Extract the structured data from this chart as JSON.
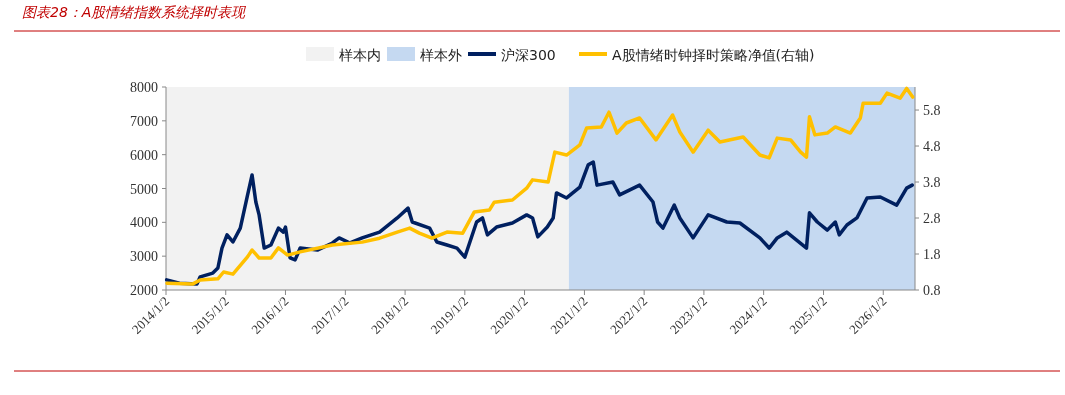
{
  "chart_data": {
    "type": "line",
    "title": "图表28：A股情绪指数系统择时表现",
    "legend": "top",
    "grid": false,
    "marker": "none",
    "line_style": "solid",
    "xlim": [
      "2014-01-02",
      "2026-07-15"
    ],
    "xticks": [
      {
        "value": "2014-01-02",
        "label": "2014/1/2"
      },
      {
        "value": "2015-01-02",
        "label": "2015/1/2"
      },
      {
        "value": "2016-01-02",
        "label": "2016/1/2"
      },
      {
        "value": "2017-01-02",
        "label": "2017/1/2"
      },
      {
        "value": "2018-01-02",
        "label": "2018/1/2"
      },
      {
        "value": "2019-01-02",
        "label": "2019/1/2"
      },
      {
        "value": "2020-01-02",
        "label": "2020/1/2"
      },
      {
        "value": "2021-01-02",
        "label": "2021/1/2"
      },
      {
        "value": "2022-01-02",
        "label": "2022/1/2"
      },
      {
        "value": "2023-01-02",
        "label": "2023/1/2"
      },
      {
        "value": "2024-01-02",
        "label": "2024/1/2"
      },
      {
        "value": "2025-01-02",
        "label": "2025/1/2"
      },
      {
        "value": "2026-01-02",
        "label": "2026/1/2"
      }
    ],
    "ylim": [
      2000,
      8000
    ],
    "yticks": [
      2000,
      3000,
      4000,
      5000,
      6000,
      7000,
      8000
    ],
    "y2lim": [
      0.8,
      6.44
    ],
    "y2ticks": [
      0.8,
      1.8,
      2.8,
      3.8,
      4.8,
      5.8
    ],
    "bands": [
      {
        "axis": "x",
        "from": "2014-01-02",
        "to": "2020-09-29",
        "label": "样本内",
        "color": "#f2f2f2"
      },
      {
        "axis": "x",
        "from": "2020-09-29",
        "to": "2026-07-15",
        "label": "样本外",
        "color": "#c5d9f1"
      }
    ],
    "series": [
      {
        "name": "沪深300",
        "color": "#002060",
        "x": [
          "2014-01-06",
          "2014-03-25",
          "2014-07-10",
          "2014-07-30",
          "2014-10-15",
          "2014-11-15",
          "2014-12-10",
          "2015-01-10",
          "2015-02-15",
          "2015-04-01",
          "2015-05-15",
          "2015-06-12",
          "2015-07-05",
          "2015-07-25",
          "2015-08-25",
          "2015-10-05",
          "2015-11-20",
          "2015-12-20",
          "2016-01-02",
          "2016-01-30",
          "2016-03-01",
          "2016-04-01",
          "2016-07-15",
          "2016-10-15",
          "2016-11-25",
          "2017-01-30",
          "2017-04-15",
          "2017-07-30",
          "2017-11-15",
          "2018-01-20",
          "2018-02-15",
          "2018-06-01",
          "2018-07-15",
          "2018-09-15",
          "2018-11-15",
          "2019-01-02",
          "2019-03-15",
          "2019-04-20",
          "2019-05-20",
          "2019-07-15",
          "2019-10-20",
          "2020-01-15",
          "2020-02-20",
          "2020-03-23",
          "2020-05-20",
          "2020-06-25",
          "2020-07-15",
          "2020-09-15",
          "2020-12-05",
          "2021-01-25",
          "2021-02-25",
          "2021-03-20",
          "2021-06-25",
          "2021-08-05",
          "2021-12-05",
          "2022-02-25",
          "2022-03-25",
          "2022-04-27",
          "2022-07-05",
          "2022-08-08",
          "2022-10-28",
          "2023-01-28",
          "2023-05-22",
          "2023-08-10",
          "2023-12-10",
          "2024-02-05",
          "2024-03-25",
          "2024-05-22",
          "2024-09-20",
          "2024-10-08",
          "2024-11-25",
          "2025-01-25",
          "2025-03-15",
          "2025-04-08",
          "2025-05-25",
          "2025-07-25",
          "2025-09-25",
          "2025-12-15",
          "2026-03-25",
          "2026-05-25",
          "2026-06-28"
        ],
        "values": [
          2300,
          2200,
          2180,
          2390,
          2500,
          2650,
          3240,
          3630,
          3420,
          3830,
          4800,
          5400,
          4600,
          4220,
          3240,
          3330,
          3830,
          3710,
          3860,
          2950,
          2890,
          3240,
          3180,
          3390,
          3540,
          3390,
          3540,
          3710,
          4130,
          4420,
          4010,
          3830,
          3420,
          3330,
          3240,
          2970,
          4010,
          4130,
          3630,
          3860,
          3980,
          4220,
          4130,
          3570,
          3860,
          4130,
          4870,
          4720,
          5040,
          5700,
          5780,
          5100,
          5190,
          4810,
          5100,
          4600,
          4010,
          3830,
          4510,
          4130,
          3540,
          4220,
          4010,
          3980,
          3540,
          3240,
          3540,
          3710,
          3240,
          4280,
          4010,
          3770,
          4010,
          3630,
          3920,
          4130,
          4720,
          4750,
          4510,
          5010,
          5100
        ]
      },
      {
        "name": "A股情绪时钟择时策略净值(右轴)",
        "color": "#ffc000",
        "axis": "y2",
        "x": [
          "2014-01-08",
          "2014-06-15",
          "2014-07-30",
          "2014-11-15",
          "2014-12-20",
          "2015-02-15",
          "2015-05-15",
          "2015-06-12",
          "2015-07-25",
          "2015-10-05",
          "2015-11-20",
          "2016-01-15",
          "2016-04-01",
          "2016-10-15",
          "2017-04-15",
          "2017-07-30",
          "2017-11-15",
          "2018-01-30",
          "2018-03-30",
          "2018-06-15",
          "2018-09-15",
          "2018-12-20",
          "2019-03-01",
          "2019-06-01",
          "2019-07-01",
          "2019-10-20",
          "2020-01-15",
          "2020-02-20",
          "2020-05-25",
          "2020-07-05",
          "2020-09-15",
          "2020-12-05",
          "2021-01-15",
          "2021-04-15",
          "2021-06-01",
          "2021-07-20",
          "2021-09-15",
          "2021-12-05",
          "2022-03-15",
          "2022-06-25",
          "2022-08-08",
          "2022-10-28",
          "2023-01-28",
          "2023-04-10",
          "2023-08-30",
          "2023-12-10",
          "2024-02-05",
          "2024-03-25",
          "2024-06-15",
          "2024-08-15",
          "2024-09-20",
          "2024-10-08",
          "2024-11-10",
          "2025-01-25",
          "2025-03-15",
          "2025-06-15",
          "2025-08-15",
          "2025-09-01",
          "2025-12-15",
          "2026-01-25",
          "2026-04-15",
          "2026-05-25",
          "2026-07-01"
        ],
        "values": [
          0.99,
          0.97,
          1.08,
          1.11,
          1.3,
          1.24,
          1.72,
          1.91,
          1.69,
          1.69,
          1.97,
          1.77,
          1.86,
          2.05,
          2.13,
          2.24,
          2.41,
          2.52,
          2.38,
          2.24,
          2.41,
          2.38,
          2.97,
          3.02,
          3.24,
          3.3,
          3.63,
          3.86,
          3.8,
          4.63,
          4.55,
          4.83,
          5.3,
          5.33,
          5.74,
          5.16,
          5.44,
          5.58,
          4.97,
          5.66,
          5.19,
          4.63,
          5.24,
          4.91,
          5.05,
          4.55,
          4.47,
          5.02,
          4.97,
          4.63,
          4.49,
          5.61,
          5.11,
          5.16,
          5.33,
          5.16,
          5.58,
          5.99,
          5.99,
          6.27,
          6.13,
          6.4,
          6.16
        ]
      }
    ]
  }
}
